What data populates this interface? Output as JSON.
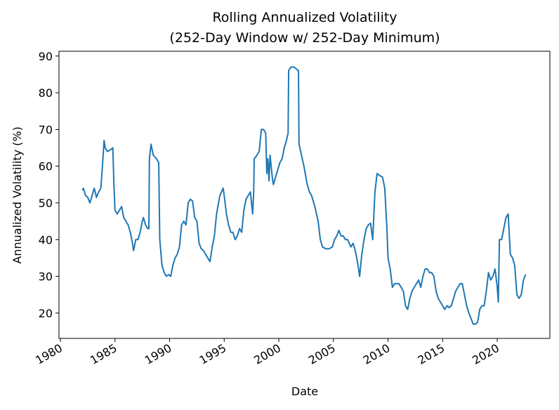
{
  "chart_data": {
    "type": "line",
    "title": [
      "Rolling Annualized Volatility",
      "(252-Day Window w/ 252-Day Minimum)"
    ],
    "xlabel": "Date",
    "ylabel": "Annualized Volatility (%)",
    "color": "#1f77b4",
    "xlim": [
      1979.87,
      2024.82
    ],
    "xticks": [
      1980,
      1985,
      1990,
      1995,
      2000,
      2005,
      2010,
      2015,
      2020
    ],
    "ylim": [
      13.1,
      91.3
    ],
    "yticks": [
      20,
      30,
      40,
      50,
      60,
      70,
      80,
      90
    ],
    "grid": false,
    "x": [
      1982.0,
      1982.1,
      1982.3,
      1982.5,
      1982.7,
      1982.9,
      1983.1,
      1983.3,
      1983.5,
      1983.7,
      1983.85,
      1984.0,
      1984.1,
      1984.3,
      1984.6,
      1984.8,
      1984.9,
      1985.0,
      1985.2,
      1985.4,
      1985.6,
      1985.8,
      1986.0,
      1986.2,
      1986.4,
      1986.6,
      1986.7,
      1986.9,
      1987.1,
      1987.3,
      1987.5,
      1987.6,
      1987.8,
      1988.0,
      1988.1,
      1988.15,
      1988.3,
      1988.5,
      1988.8,
      1989.0,
      1989.1,
      1989.3,
      1989.5,
      1989.7,
      1989.9,
      1990.1,
      1990.3,
      1990.5,
      1990.7,
      1990.9,
      1991.1,
      1991.3,
      1991.5,
      1991.7,
      1991.9,
      1992.1,
      1992.3,
      1992.5,
      1992.7,
      1992.9,
      1993.1,
      1993.3,
      1993.5,
      1993.7,
      1993.9,
      1994.1,
      1994.3,
      1994.6,
      1994.9,
      1995.0,
      1995.2,
      1995.4,
      1995.6,
      1995.8,
      1996.0,
      1996.2,
      1996.4,
      1996.6,
      1996.8,
      1997.0,
      1997.2,
      1997.4,
      1997.6,
      1997.7,
      1997.75,
      1998.0,
      1998.2,
      1998.4,
      1998.6,
      1998.8,
      1998.9,
      1999.0,
      1999.1,
      1999.2,
      1999.4,
      1999.5,
      1999.7,
      1999.9,
      2000.1,
      2000.3,
      2000.5,
      2000.7,
      2000.85,
      2000.9,
      2001.1,
      2001.4,
      2001.6,
      2001.8,
      2001.85,
      2002.0,
      2002.3,
      2002.6,
      2002.8,
      2003.0,
      2003.3,
      2003.6,
      2003.8,
      2004.0,
      2004.3,
      2004.6,
      2004.9,
      2005.1,
      2005.3,
      2005.5,
      2005.7,
      2005.9,
      2006.1,
      2006.3,
      2006.6,
      2006.8,
      2007.0,
      2007.2,
      2007.4,
      2007.6,
      2007.8,
      2008.0,
      2008.2,
      2008.4,
      2008.6,
      2008.8,
      2009.0,
      2009.2,
      2009.5,
      2009.7,
      2009.9,
      2010.0,
      2010.2,
      2010.4,
      2010.6,
      2010.8,
      2011.0,
      2011.2,
      2011.4,
      2011.6,
      2011.8,
      2012.0,
      2012.2,
      2012.4,
      2012.6,
      2012.8,
      2013.0,
      2013.2,
      2013.4,
      2013.6,
      2013.8,
      2014.0,
      2014.2,
      2014.4,
      2014.6,
      2014.8,
      2015.0,
      2015.2,
      2015.4,
      2015.6,
      2015.8,
      2016.0,
      2016.2,
      2016.4,
      2016.6,
      2016.8,
      2017.0,
      2017.2,
      2017.4,
      2017.6,
      2017.8,
      2018.0,
      2018.2,
      2018.4,
      2018.6,
      2018.8,
      2019.0,
      2019.2,
      2019.4,
      2019.6,
      2019.8,
      2020.0,
      2020.1,
      2020.2,
      2020.4,
      2020.6,
      2020.8,
      2021.0,
      2021.2,
      2021.4,
      2021.6,
      2021.8,
      2022.0,
      2022.2,
      2022.4,
      2022.6
    ],
    "values": [
      53.5,
      54,
      52,
      51.5,
      50,
      52,
      54,
      51.5,
      53,
      54,
      60,
      67,
      65,
      64,
      64.5,
      65,
      55,
      48,
      47,
      48,
      49,
      46,
      45,
      44,
      42,
      39,
      37,
      40,
      40,
      42,
      45,
      46,
      44,
      43,
      43,
      62,
      66,
      63,
      62,
      61,
      40,
      33,
      31,
      30,
      30.5,
      30,
      33,
      35,
      36,
      38,
      44,
      45,
      44,
      50,
      51,
      50.5,
      46,
      45,
      39,
      37.5,
      37,
      36,
      35,
      34,
      38,
      41,
      47,
      52,
      54,
      52,
      47,
      44,
      42,
      42,
      40,
      41,
      43,
      42,
      48,
      51,
      52,
      53,
      47,
      53,
      62,
      63,
      64,
      70,
      70,
      69,
      58,
      62,
      56,
      63,
      57,
      55,
      57,
      59,
      61,
      62,
      65,
      67,
      69,
      86,
      87,
      87,
      86.5,
      86,
      66,
      64,
      60,
      55,
      53,
      52,
      49,
      45,
      40,
      38,
      37.5,
      37.5,
      38,
      40,
      41,
      42.5,
      41,
      41,
      40,
      40,
      38,
      39,
      37,
      34,
      30,
      36,
      40,
      43,
      44,
      44.5,
      40,
      53,
      58,
      57.5,
      57,
      54,
      43,
      35,
      32,
      27,
      28,
      28,
      28,
      27,
      26,
      22,
      21,
      24,
      26,
      27,
      28,
      29,
      27,
      30,
      32,
      32,
      31,
      31,
      30,
      26,
      24,
      23,
      22,
      21,
      22,
      21.5,
      22,
      24,
      26,
      27,
      28,
      28,
      25,
      22,
      20,
      18.5,
      17,
      17,
      17.5,
      21,
      22,
      22,
      26,
      31,
      29,
      30,
      32,
      27,
      23,
      40,
      40,
      43,
      46,
      47,
      36,
      35,
      33,
      25,
      24,
      25,
      29,
      30.5
    ]
  }
}
